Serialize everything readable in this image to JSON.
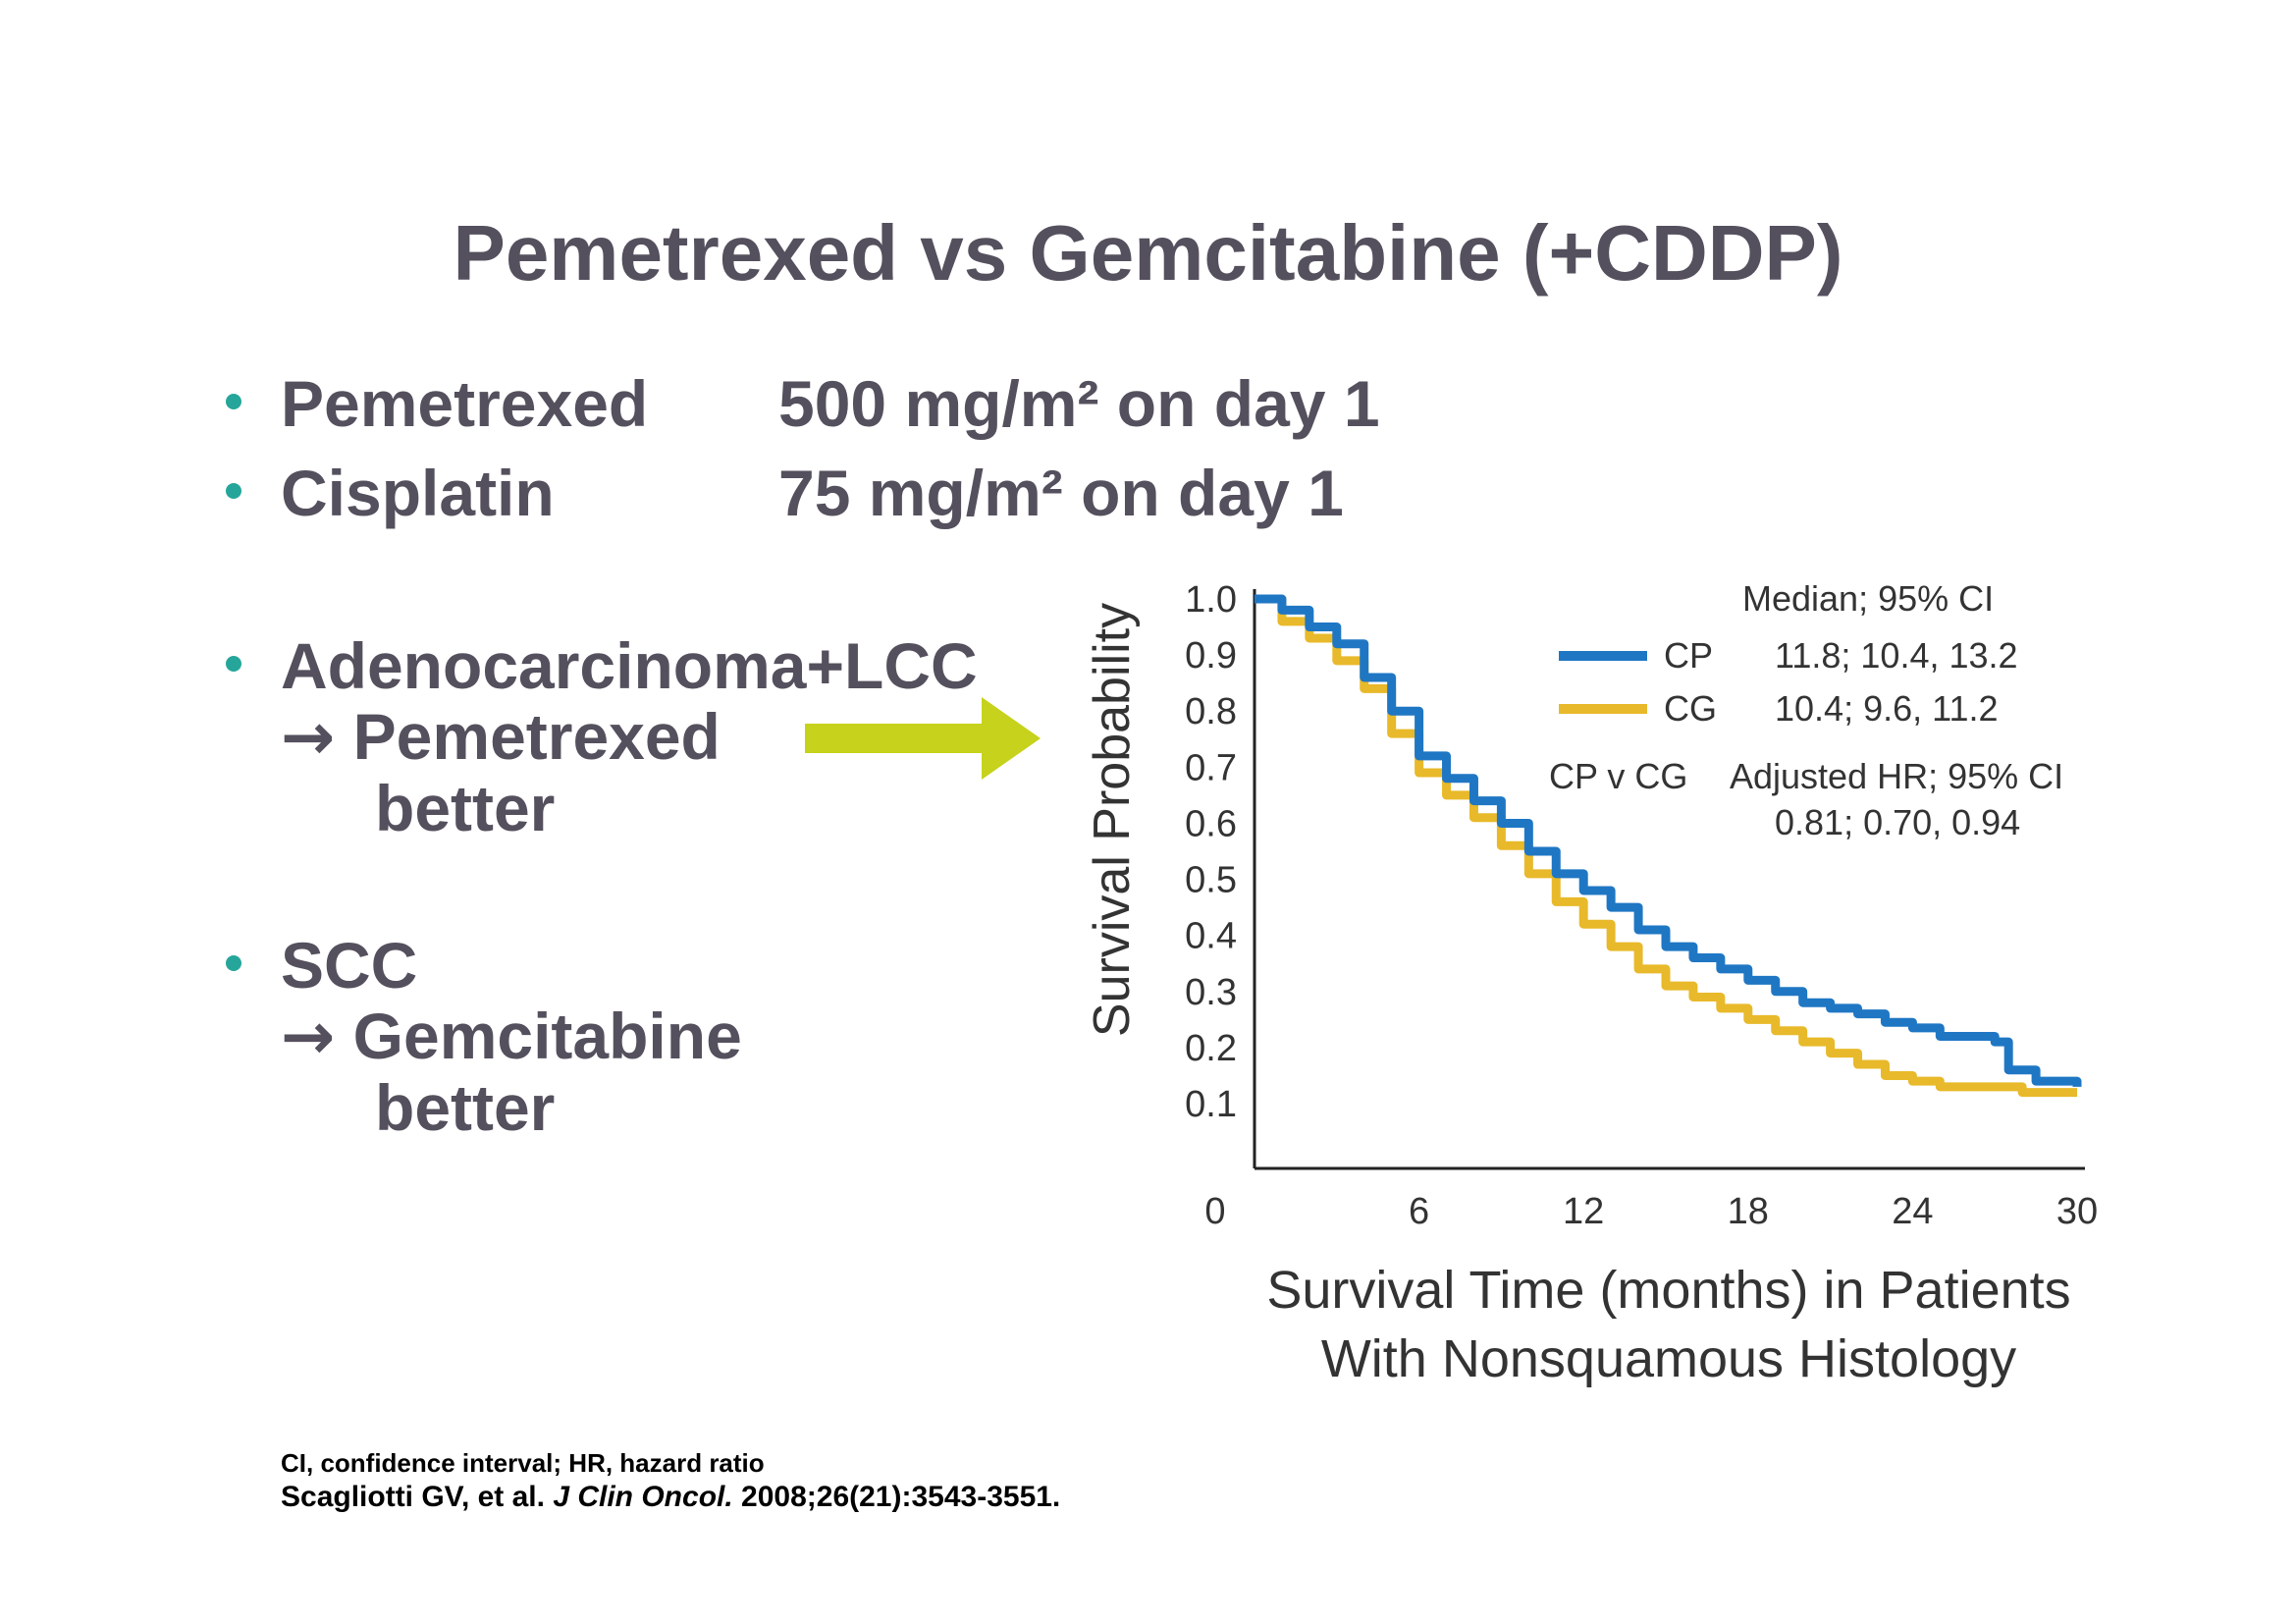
{
  "slide": {
    "title": "Pemetrexed vs Gemcitabine (+CDDP)",
    "bullets": [
      {
        "label": "Pemetrexed",
        "dose": "500 mg/m² on day 1"
      },
      {
        "label": "Cisplatin",
        "dose": "75 mg/m² on day 1"
      }
    ],
    "findings": [
      {
        "head": "Adenocarcinoma+LCC",
        "arrow": "→",
        "line2": "Pemetrexed",
        "line3": "better"
      },
      {
        "head": "SCC",
        "arrow": "→",
        "line2": "Gemcitabine",
        "line3": "better"
      }
    ],
    "footnote": "CI, confidence interval; HR, hazard ratio",
    "citation": {
      "authors": "Scagliotti GV, et al.",
      "journal": "J Clin Oncol.",
      "ref": "2008;26(21):3543-3551."
    },
    "colors": {
      "text": "#55505d",
      "bullet": "#26a69a",
      "arrow": "#c6d21b"
    }
  },
  "chart_data": {
    "type": "line",
    "ylabel": "Survival Probability",
    "xlabel_line1": "Survival Time (months) in Patients",
    "xlabel_line2": "With Nonsquamous Histology",
    "xlim": [
      0,
      30
    ],
    "ylim": [
      0.05,
      1.0
    ],
    "x_ticks": [
      "0",
      "6",
      "12",
      "18",
      "24",
      "30"
    ],
    "y_ticks": [
      "1.0",
      "0.9",
      "0.8",
      "0.7",
      "0.6",
      "0.5",
      "0.4",
      "0.3",
      "0.2",
      "0.1"
    ],
    "legend": {
      "header": "Median; 95% CI",
      "rows": [
        {
          "name": "CP",
          "stat": "11.8;  10.4, 13.2",
          "color": "#1f77c4"
        },
        {
          "name": "CG",
          "stat": "10.4;  9.6, 11.2",
          "color": "#e8b92a"
        }
      ],
      "comparison": "CP v CG",
      "hr_label": "Adjusted HR; 95% CI",
      "hr_value": "0.81;  0.70, 0.94"
    },
    "series": [
      {
        "name": "CP",
        "color": "#1f77c4",
        "x": [
          0,
          1,
          2,
          3,
          4,
          5,
          6,
          7,
          8,
          9,
          10,
          11,
          12,
          13,
          14,
          15,
          16,
          17,
          18,
          19,
          20,
          21,
          22,
          23,
          24,
          25,
          26,
          27,
          27.5,
          28,
          28.5,
          30
        ],
        "y": [
          1.0,
          0.98,
          0.95,
          0.92,
          0.86,
          0.8,
          0.72,
          0.68,
          0.64,
          0.6,
          0.55,
          0.51,
          0.48,
          0.45,
          0.41,
          0.38,
          0.36,
          0.34,
          0.32,
          0.3,
          0.28,
          0.27,
          0.26,
          0.245,
          0.235,
          0.22,
          0.22,
          0.21,
          0.16,
          0.16,
          0.14,
          0.13
        ]
      },
      {
        "name": "CG",
        "color": "#e8b92a",
        "x": [
          0,
          1,
          2,
          3,
          4,
          5,
          6,
          7,
          8,
          9,
          10,
          11,
          12,
          13,
          14,
          15,
          16,
          17,
          18,
          19,
          20,
          21,
          22,
          23,
          24,
          25,
          26,
          27,
          28,
          29,
          30
        ],
        "y": [
          1.0,
          0.96,
          0.93,
          0.89,
          0.84,
          0.76,
          0.69,
          0.65,
          0.61,
          0.56,
          0.51,
          0.46,
          0.42,
          0.38,
          0.34,
          0.31,
          0.29,
          0.27,
          0.25,
          0.23,
          0.21,
          0.19,
          0.17,
          0.15,
          0.14,
          0.13,
          0.13,
          0.13,
          0.12,
          0.12,
          0.12
        ]
      }
    ]
  }
}
